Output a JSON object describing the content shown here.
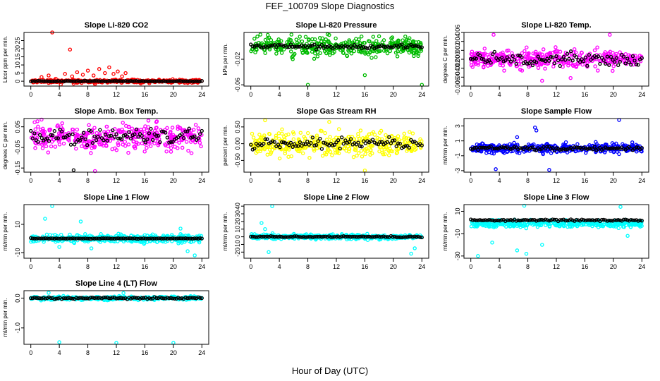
{
  "figure": {
    "title": "FEF_100709  Slope Diagnostics",
    "xlabel": "Hour of Day (UTC)"
  },
  "chart_data": [
    {
      "id": "co2",
      "type": "scatter",
      "title": "Slope Li-820 CO2",
      "ylabel": "Licor ppm per min.",
      "xlim": [
        0,
        24
      ],
      "ylim": [
        -3,
        30
      ],
      "xticks": [
        0,
        4,
        8,
        12,
        16,
        20,
        24
      ],
      "yticks": [
        0,
        5,
        10,
        15,
        20,
        25
      ],
      "ytick_labels": [
        "0",
        "5",
        "10",
        "15",
        "20",
        "25"
      ],
      "series": [
        {
          "color": "#ff0000",
          "spread": 1.2,
          "center": 0,
          "values": [
            [
              3.0,
              30
            ],
            [
              5.5,
              19.5
            ],
            [
              1.5,
              2.5
            ],
            [
              2.5,
              3.5
            ],
            [
              3.5,
              1.5
            ],
            [
              4.8,
              4.5
            ],
            [
              5.8,
              3.0
            ],
            [
              6.5,
              5.5
            ],
            [
              7.3,
              4.0
            ],
            [
              8.0,
              6.5
            ],
            [
              8.8,
              3.5
            ],
            [
              9.6,
              7.5
            ],
            [
              10.4,
              5.0
            ],
            [
              11.0,
              8.5
            ],
            [
              11.6,
              4.5
            ],
            [
              12.2,
              6.0
            ],
            [
              12.8,
              3.0
            ],
            [
              13.3,
              5.0
            ],
            [
              4.2,
              -2.0
            ],
            [
              6.0,
              -1.5
            ],
            [
              9.0,
              -1.8
            ]
          ]
        },
        {
          "color": "#000000",
          "spread": 0.3,
          "center": 0,
          "values": []
        }
      ]
    },
    {
      "id": "pressure",
      "type": "scatter",
      "title": "Slope Li-820 Pressure",
      "ylabel": "kPa per min.",
      "xlim": [
        0,
        24
      ],
      "ylim": [
        -0.062,
        0.022
      ],
      "xticks": [
        0,
        4,
        8,
        12,
        16,
        20,
        24
      ],
      "yticks": [
        -0.06,
        -0.02
      ],
      "ytick_labels": [
        "-0.06",
        "-0.02"
      ],
      "series": [
        {
          "color": "#00bb00",
          "spread": 0.018,
          "center": 0,
          "values": [
            [
              8.0,
              -0.06
            ],
            [
              16.0,
              -0.045
            ],
            [
              24.0,
              -0.06
            ],
            [
              11.0,
              0.018
            ],
            [
              18.0,
              0.016
            ]
          ]
        },
        {
          "color": "#000000",
          "spread": 0.004,
          "center": 0,
          "values": []
        }
      ]
    },
    {
      "id": "temp",
      "type": "scatter",
      "title": "Slope Li-820 Temp.",
      "ylabel": "degrees C per min.",
      "xlim": [
        0,
        24
      ],
      "ylim": [
        -0.006,
        0.006
      ],
      "xticks": [
        0,
        4,
        8,
        12,
        16,
        20,
        24
      ],
      "yticks": [
        -0.006,
        -0.004,
        -0.002,
        0.0,
        0.002,
        0.004,
        0.006
      ],
      "ytick_labels": [
        "-0.006",
        "-0.004",
        "-0.002",
        "0.000",
        "0.002",
        "0.004",
        "0.006"
      ],
      "series": [
        {
          "color": "#ff00ff",
          "spread": 0.0026,
          "center": 0,
          "values": [
            [
              3.2,
              0.0055
            ],
            [
              19.5,
              0.0055
            ],
            [
              10.0,
              -0.0048
            ],
            [
              14.0,
              -0.0042
            ]
          ]
        },
        {
          "color": "#000000",
          "spread": 0.0018,
          "center": 0,
          "values": []
        }
      ]
    },
    {
      "id": "ambtemp",
      "type": "scatter",
      "title": "Slope Amb. Box Temp.",
      "ylabel": "degrees C per min.",
      "xlim": [
        0,
        24
      ],
      "ylim": [
        -0.17,
        0.09
      ],
      "xticks": [
        0,
        4,
        8,
        12,
        16,
        20,
        24
      ],
      "yticks": [
        -0.15,
        -0.05,
        0.05
      ],
      "ytick_labels": [
        "-0.15",
        "-0.05",
        "0.05"
      ],
      "series": [
        {
          "color": "#ff00ff",
          "spread": 0.08,
          "center": 0,
          "values": [
            [
              1.5,
              0.085
            ],
            [
              9.0,
              -0.165
            ],
            [
              16.5,
              0.08
            ]
          ]
        },
        {
          "color": "#000000",
          "spread": 0.05,
          "center": 0,
          "values": [
            [
              6.0,
              -0.16
            ]
          ]
        }
      ]
    },
    {
      "id": "rh",
      "type": "scatter",
      "title": "Slope Gas Stream RH",
      "ylabel": "percent per min.",
      "xlim": [
        0,
        24
      ],
      "ylim": [
        -0.85,
        0.75
      ],
      "xticks": [
        0,
        4,
        8,
        12,
        16,
        20,
        24
      ],
      "yticks": [
        -0.5,
        0.0,
        0.5
      ],
      "ytick_labels": [
        "-0.50",
        "0.00",
        "0.50"
      ],
      "series": [
        {
          "color": "#ffff00",
          "spread": 0.42,
          "center": 0,
          "values": [
            [
              2.0,
              0.7
            ],
            [
              16.0,
              -0.8
            ],
            [
              11.0,
              0.65
            ]
          ]
        },
        {
          "color": "#000000",
          "spread": 0.2,
          "center": 0,
          "values": []
        }
      ]
    },
    {
      "id": "sampleflow",
      "type": "scatter",
      "title": "Slope Sample Flow",
      "ylabel": "ml/min per min.",
      "xlim": [
        0,
        24
      ],
      "ylim": [
        -3.2,
        4.0
      ],
      "xticks": [
        0,
        4,
        8,
        12,
        16,
        20,
        24
      ],
      "yticks": [
        -3,
        -1,
        1,
        3
      ],
      "ytick_labels": [
        "-3",
        "-1",
        "1",
        "3"
      ],
      "series": [
        {
          "color": "#0000ff",
          "spread": 0.8,
          "center": 0,
          "values": [
            [
              9.0,
              2.8
            ],
            [
              9.2,
              2.4
            ],
            [
              20.8,
              3.8
            ],
            [
              3.5,
              -2.8
            ],
            [
              11.0,
              -2.9
            ],
            [
              6.5,
              1.5
            ]
          ]
        },
        {
          "color": "#000000",
          "spread": 0.3,
          "center": 0,
          "values": []
        }
      ]
    },
    {
      "id": "line1",
      "type": "scatter",
      "title": "Slope Line 1 Flow",
      "ylabel": "ml/min per min.",
      "xlim": [
        0,
        24
      ],
      "ylim": [
        -14,
        24
      ],
      "xticks": [
        0,
        4,
        8,
        12,
        16,
        20,
        24
      ],
      "yticks": [
        -10,
        10
      ],
      "ytick_labels": [
        "-10",
        "10"
      ],
      "series": [
        {
          "color": "#00ffff",
          "spread": 3.5,
          "center": 0,
          "values": [
            [
              3.0,
              23
            ],
            [
              2.0,
              14
            ],
            [
              7.0,
              12
            ],
            [
              23.0,
              -12
            ],
            [
              22.0,
              -9
            ],
            [
              4.0,
              -6
            ],
            [
              21.0,
              7
            ],
            [
              8.5,
              -7
            ]
          ]
        },
        {
          "color": "#000000",
          "spread": 0.3,
          "center": 0,
          "values": []
        }
      ]
    },
    {
      "id": "line2",
      "type": "scatter",
      "title": "Slope Line 2 Flow",
      "ylabel": "ml/min per min.",
      "xlim": [
        0,
        24
      ],
      "ylim": [
        -28,
        42
      ],
      "xticks": [
        0,
        4,
        8,
        12,
        16,
        20,
        24
      ],
      "yticks": [
        -20,
        -10,
        0,
        10,
        20,
        30,
        40
      ],
      "ytick_labels": [
        "-20",
        "-10",
        "0",
        "10",
        "20",
        "30",
        "40"
      ],
      "series": [
        {
          "color": "#00ffff",
          "spread": 4,
          "center": 0,
          "values": [
            [
              3.0,
              40
            ],
            [
              1.5,
              18
            ],
            [
              2.5,
              -20
            ],
            [
              22.5,
              -22
            ],
            [
              23.0,
              -15
            ],
            [
              2.0,
              10
            ]
          ]
        },
        {
          "color": "#000000",
          "spread": 1.0,
          "center": 0,
          "values": []
        }
      ]
    },
    {
      "id": "line3",
      "type": "scatter",
      "title": "Slope Line 3 Flow",
      "ylabel": "ml/min per min.",
      "xlim": [
        0,
        24
      ],
      "ylim": [
        -32,
        16
      ],
      "xticks": [
        0,
        4,
        8,
        12,
        16,
        20,
        24
      ],
      "yticks": [
        -30,
        -10,
        10
      ],
      "ytick_labels": [
        "-30",
        "-10",
        "10"
      ],
      "series": [
        {
          "color": "#00ffff",
          "spread": 4,
          "center": -1,
          "values": [
            [
              1.0,
              -30
            ],
            [
              7.5,
              15
            ],
            [
              21.0,
              14
            ],
            [
              6.5,
              -25
            ],
            [
              7.8,
              -28
            ],
            [
              3.0,
              -18
            ],
            [
              10.0,
              -20
            ],
            [
              22.0,
              -12
            ]
          ]
        },
        {
          "color": "#000000",
          "spread": 1.0,
          "center": 2,
          "values": []
        }
      ]
    },
    {
      "id": "line4",
      "type": "scatter",
      "title": "Slope Line 4 (LT) Flow",
      "ylabel": "ml/min per min.",
      "xlim": [
        0,
        24
      ],
      "ylim": [
        -1.55,
        0.25
      ],
      "xticks": [
        0,
        4,
        8,
        12,
        16,
        20,
        24
      ],
      "yticks": [
        -1.0,
        0.0
      ],
      "ytick_labels": [
        "-1.0",
        "0.0"
      ],
      "series": [
        {
          "color": "#00ffff",
          "spread": 0.07,
          "center": 0,
          "values": [
            [
              4.0,
              -1.48
            ],
            [
              12.0,
              -1.5
            ],
            [
              20.0,
              -1.5
            ],
            [
              2.5,
              0.18
            ],
            [
              13.0,
              0.17
            ]
          ]
        },
        {
          "color": "#000000",
          "spread": 0.04,
          "center": 0,
          "values": []
        }
      ]
    }
  ]
}
